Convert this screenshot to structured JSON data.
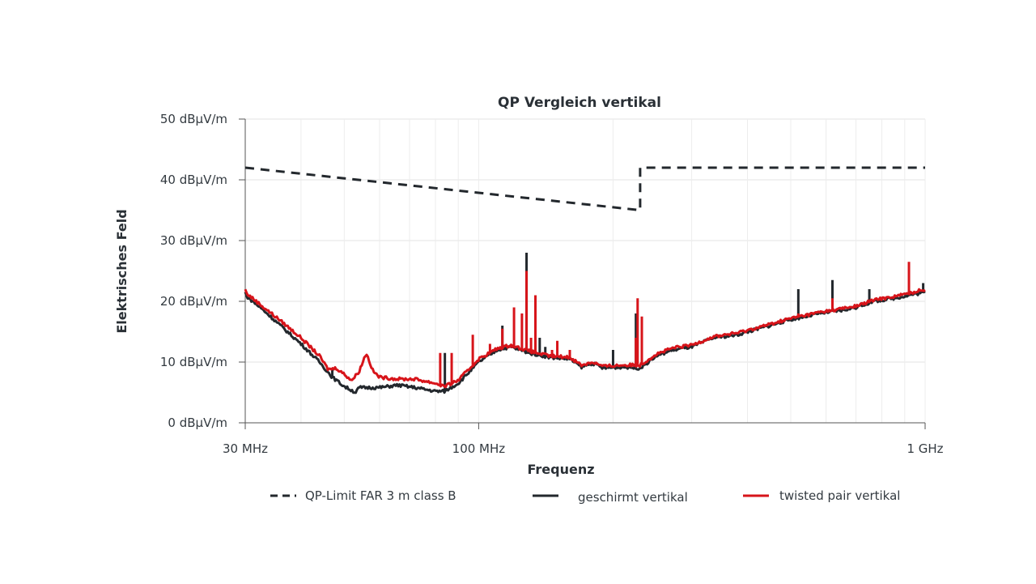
{
  "chart_data": {
    "type": "line",
    "title": "QP Vergleich vertikal",
    "xlabel": "Frequenz",
    "ylabel": "Elektrisches Feld",
    "x_scale": "log",
    "xlim_mhz": [
      30,
      1000
    ],
    "ylim": [
      0,
      50
    ],
    "grid": true,
    "legend_position": "bottom",
    "y_ticks": [
      {
        "value": 0,
        "label": "0 dBµV/m"
      },
      {
        "value": 10,
        "label": "10 dBµV/m"
      },
      {
        "value": 20,
        "label": "20 dBµV/m"
      },
      {
        "value": 30,
        "label": "30 dBµV/m"
      },
      {
        "value": 40,
        "label": "40 dBµV/m"
      },
      {
        "value": 50,
        "label": "50 dBµV/m"
      }
    ],
    "x_ticks": [
      {
        "value": 30,
        "label": "30 MHz"
      },
      {
        "value": 100,
        "label": "100 MHz"
      },
      {
        "value": 1000,
        "label": "1 GHz"
      }
    ],
    "series": [
      {
        "name": "QP-Limit FAR 3 m class B",
        "color": "#23282d",
        "style": "dashed",
        "points": [
          [
            30,
            42
          ],
          [
            230,
            35
          ],
          [
            230,
            42
          ],
          [
            1000,
            42
          ]
        ]
      },
      {
        "name": "geschirmt vertikal",
        "color": "#23282d",
        "style": "solid",
        "points": [
          [
            30,
            21
          ],
          [
            33,
            18.5
          ],
          [
            36,
            16
          ],
          [
            40,
            13
          ],
          [
            44,
            10
          ],
          [
            47,
            7.5
          ],
          [
            50,
            6
          ],
          [
            53,
            5
          ],
          [
            54,
            5.8
          ],
          [
            60,
            5.8
          ],
          [
            66,
            6.2
          ],
          [
            72,
            5.8
          ],
          [
            80,
            5.2
          ],
          [
            84,
            5.2
          ],
          [
            90,
            6.5
          ],
          [
            100,
            10
          ],
          [
            110,
            12
          ],
          [
            118,
            12.5
          ],
          [
            130,
            11.5
          ],
          [
            144,
            10.8
          ],
          [
            160,
            10.5
          ],
          [
            170,
            9.2
          ],
          [
            180,
            9.8
          ],
          [
            190,
            9
          ],
          [
            210,
            9.2
          ],
          [
            230,
            9
          ],
          [
            250,
            11
          ],
          [
            272,
            12
          ],
          [
            300,
            12.5
          ],
          [
            336,
            14
          ],
          [
            380,
            14.5
          ],
          [
            448,
            16
          ],
          [
            500,
            17
          ],
          [
            580,
            18
          ],
          [
            650,
            18.5
          ],
          [
            700,
            19
          ],
          [
            767,
            20
          ],
          [
            850,
            20.5
          ],
          [
            920,
            21
          ],
          [
            1000,
            21.5
          ]
        ],
        "spikes": [
          [
            47,
            9
          ],
          [
            84,
            11.5
          ],
          [
            113,
            16
          ],
          [
            128,
            28
          ],
          [
            137,
            14
          ],
          [
            141,
            12.5
          ],
          [
            156,
            11
          ],
          [
            200,
            12
          ],
          [
            225,
            18
          ],
          [
            520,
            22
          ],
          [
            620,
            23.5
          ],
          [
            750,
            22
          ],
          [
            990,
            23
          ]
        ]
      },
      {
        "name": "twisted pair vertikal",
        "color": "#d7141a",
        "style": "solid",
        "points": [
          [
            30,
            21.5
          ],
          [
            33,
            19
          ],
          [
            36,
            16.8
          ],
          [
            40,
            14
          ],
          [
            44,
            11
          ],
          [
            46,
            8.8
          ],
          [
            48,
            9
          ],
          [
            50,
            8
          ],
          [
            52,
            7
          ],
          [
            54,
            8.5
          ],
          [
            56,
            11.5
          ],
          [
            58,
            8.5
          ],
          [
            60,
            7.5
          ],
          [
            66,
            7.2
          ],
          [
            72,
            7.2
          ],
          [
            80,
            6.5
          ],
          [
            84,
            6
          ],
          [
            90,
            7
          ],
          [
            100,
            10.5
          ],
          [
            110,
            12.2
          ],
          [
            118,
            12.8
          ],
          [
            130,
            11.8
          ],
          [
            144,
            11
          ],
          [
            160,
            10.8
          ],
          [
            170,
            9.5
          ],
          [
            180,
            10
          ],
          [
            190,
            9.3
          ],
          [
            210,
            9.5
          ],
          [
            230,
            9.5
          ],
          [
            250,
            11.3
          ],
          [
            272,
            12.3
          ],
          [
            300,
            12.8
          ],
          [
            336,
            14.2
          ],
          [
            380,
            14.8
          ],
          [
            448,
            16.2
          ],
          [
            500,
            17.2
          ],
          [
            580,
            18.2
          ],
          [
            650,
            18.8
          ],
          [
            700,
            19.2
          ],
          [
            767,
            20.2
          ],
          [
            850,
            20.8
          ],
          [
            920,
            21.3
          ],
          [
            1000,
            22
          ]
        ],
        "spikes": [
          [
            82,
            11.5
          ],
          [
            87,
            11.5
          ],
          [
            97,
            14.5
          ],
          [
            106,
            13
          ],
          [
            113,
            15.5
          ],
          [
            120,
            19
          ],
          [
            125,
            18
          ],
          [
            128,
            25
          ],
          [
            131,
            14
          ],
          [
            134,
            21
          ],
          [
            146,
            12
          ],
          [
            150,
            13.5
          ],
          [
            160,
            12
          ],
          [
            225,
            14
          ],
          [
            227,
            20.5
          ],
          [
            232,
            17.5
          ],
          [
            520,
            18
          ],
          [
            620,
            20.5
          ],
          [
            920,
            26.5
          ]
        ]
      }
    ]
  }
}
